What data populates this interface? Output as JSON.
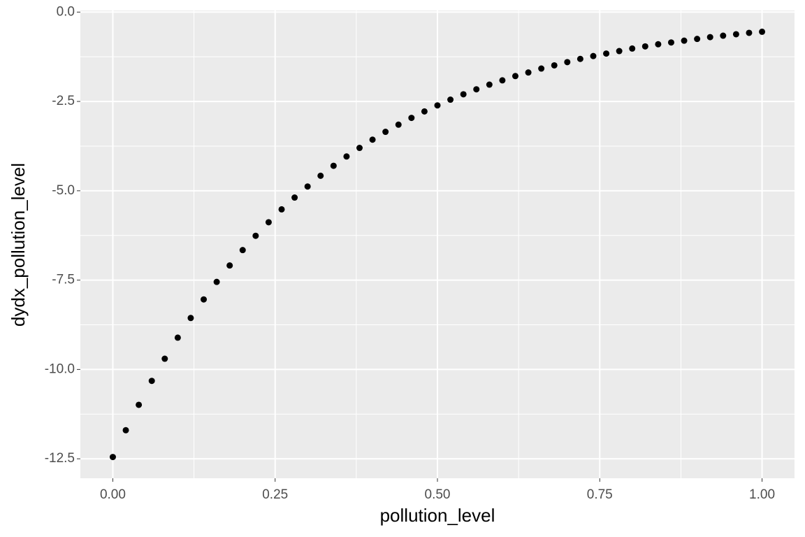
{
  "chart_data": {
    "type": "scatter",
    "x_label": "pollution_level",
    "y_label": "dydx_pollution_level",
    "color": "#000000",
    "grid": true,
    "xlim": [
      -0.05,
      1.05
    ],
    "ylim": [
      -13.045,
      0.045
    ],
    "xticks": [
      {
        "value": 0,
        "label": "0.00"
      },
      0.25,
      {
        "value": 0.5,
        "label": "0.50"
      },
      0.75,
      {
        "value": 1,
        "label": "1.00"
      }
    ],
    "yticks": [
      {
        "value": 0,
        "label": "0.0"
      },
      -2.5,
      {
        "value": -5,
        "label": "-5.0"
      },
      -7.5,
      {
        "value": -10,
        "label": "-10.0"
      },
      -12.5
    ],
    "x": [
      0,
      0.02,
      0.04,
      0.06,
      0.08,
      0.1,
      0.12,
      0.14,
      0.16,
      0.18,
      0.2,
      0.22,
      0.24,
      0.26,
      0.28,
      0.3,
      0.32,
      0.34,
      0.36,
      0.38,
      0.4,
      0.42,
      0.44,
      0.46,
      0.48,
      0.5,
      0.52,
      0.54,
      0.56,
      0.58,
      0.6,
      0.62,
      0.64,
      0.66,
      0.68,
      0.7,
      0.72,
      0.74,
      0.76,
      0.78,
      0.8,
      0.82,
      0.84,
      0.86,
      0.88,
      0.9,
      0.92,
      0.94,
      0.96,
      0.98,
      1
    ],
    "values": [
      -12.45,
      -11.7,
      -10.99,
      -10.32,
      -9.7,
      -9.11,
      -8.56,
      -8.04,
      -7.55,
      -7.09,
      -6.66,
      -6.26,
      -5.88,
      -5.52,
      -5.19,
      -4.88,
      -4.58,
      -4.3,
      -4.04,
      -3.8,
      -3.57,
      -3.35,
      -3.15,
      -2.96,
      -2.78,
      -2.61,
      -2.45,
      -2.3,
      -2.16,
      -2.03,
      -1.91,
      -1.79,
      -1.69,
      -1.58,
      -1.49,
      -1.4,
      -1.31,
      -1.23,
      -1.16,
      -1.09,
      -1.02,
      -0.96,
      -0.9,
      -0.85,
      -0.8,
      -0.75,
      -0.7,
      -0.66,
      -0.62,
      -0.58,
      -0.55
    ]
  }
}
